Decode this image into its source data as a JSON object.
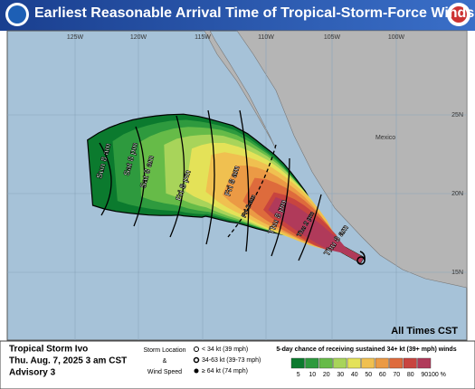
{
  "header": {
    "title": "Earliest Reasonable Arrival Time of Tropical-Storm-Force Winds"
  },
  "map": {
    "longitude_labels": [
      "125W",
      "120W",
      "115W",
      "110W",
      "105W",
      "100W"
    ],
    "latitude_labels": [
      "25N",
      "20N",
      "15N"
    ],
    "region_label": "Mexico",
    "time_labels": [
      "Sun 8 am",
      "Sat 8 pm",
      "Sat 8 am",
      "Fri 8 pm",
      "Fri 8 am",
      "Fri 2 am",
      "Thu 8 pm",
      "Thu 2 pm",
      "Thu 8 am"
    ],
    "note": "All Times CST"
  },
  "legend": {
    "storm_name": "Tropical Storm Ivo",
    "date": "Thu. Aug. 7, 2025  3 am CST",
    "advisory": "Advisory 3",
    "symbol_title": [
      "Storm Location",
      "&",
      "Wind Speed"
    ],
    "symbols": [
      "< 34 kt (39 mph)",
      "34-63 kt (39-73 mph)",
      "≥ 64 kt (74 mph)"
    ],
    "scale_title": "5-day chance of receiving sustained 34+ kt (39+ mph) winds",
    "scale_labels": [
      "5",
      "10",
      "20",
      "30",
      "40",
      "50",
      "60",
      "70",
      "80",
      "90",
      "100 %"
    ]
  }
}
